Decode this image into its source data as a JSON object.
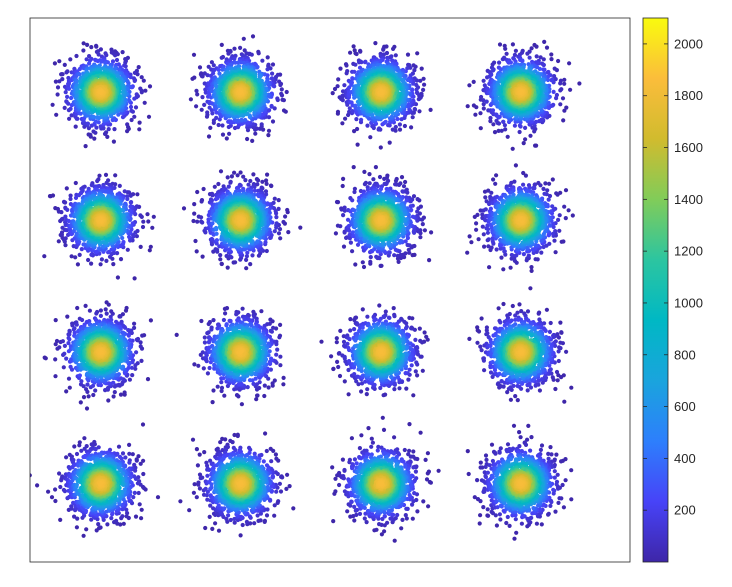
{
  "chart_data": {
    "type": "scatter",
    "title": "",
    "xlabel": "",
    "ylabel": "",
    "grid": false,
    "axes_ticks_visible": false,
    "description_of_marks": "16 dense circular point clusters in a 4x4 grid, each point colored by local density",
    "clusters": [
      {
        "row": 1,
        "col": 1,
        "cx": 0.118,
        "cy": 0.136
      },
      {
        "row": 1,
        "col": 2,
        "cx": 0.351,
        "cy": 0.136
      },
      {
        "row": 1,
        "col": 3,
        "cx": 0.585,
        "cy": 0.136
      },
      {
        "row": 1,
        "col": 4,
        "cx": 0.818,
        "cy": 0.136
      },
      {
        "row": 2,
        "col": 1,
        "cx": 0.118,
        "cy": 0.372
      },
      {
        "row": 2,
        "col": 2,
        "cx": 0.351,
        "cy": 0.372
      },
      {
        "row": 2,
        "col": 3,
        "cx": 0.585,
        "cy": 0.372
      },
      {
        "row": 2,
        "col": 4,
        "cx": 0.818,
        "cy": 0.372
      },
      {
        "row": 3,
        "col": 1,
        "cx": 0.118,
        "cy": 0.614
      },
      {
        "row": 3,
        "col": 2,
        "cx": 0.351,
        "cy": 0.614
      },
      {
        "row": 3,
        "col": 3,
        "cx": 0.585,
        "cy": 0.614
      },
      {
        "row": 3,
        "col": 4,
        "cx": 0.818,
        "cy": 0.614
      },
      {
        "row": 4,
        "col": 1,
        "cx": 0.118,
        "cy": 0.856
      },
      {
        "row": 4,
        "col": 2,
        "cx": 0.351,
        "cy": 0.856
      },
      {
        "row": 4,
        "col": 3,
        "cx": 0.585,
        "cy": 0.856
      },
      {
        "row": 4,
        "col": 4,
        "cx": 0.818,
        "cy": 0.856
      }
    ],
    "colorbar": {
      "min": 0,
      "max": 2100,
      "ticks": [
        200,
        400,
        600,
        800,
        1000,
        1200,
        1400,
        1600,
        1800,
        2000
      ],
      "tick_labels": [
        "200",
        "400",
        "600",
        "800",
        "1000",
        "1200",
        "1400",
        "1600",
        "1800",
        "2000"
      ],
      "colormap": "parula",
      "colormap_stops": [
        "#3e26a8",
        "#4743f8",
        "#2d7ffc",
        "#1aa4dd",
        "#00b8c4",
        "#2cc5a0",
        "#81cc59",
        "#d1bb2e",
        "#fbbd3b",
        "#f9fb0e"
      ]
    }
  }
}
